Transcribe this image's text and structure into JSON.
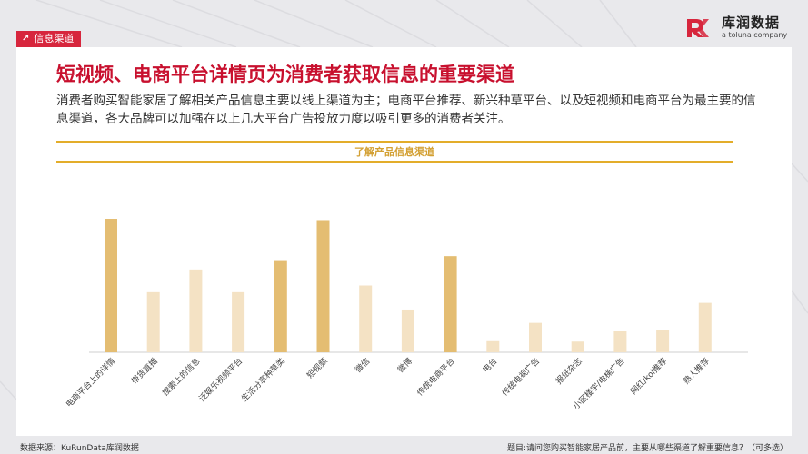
{
  "header": {
    "tag_label": "信息渠道",
    "tag_icon": "arrow-up-right-icon",
    "logo_main": "库润数据",
    "logo_sub": "a toluna company",
    "accent": "#d7263d"
  },
  "main": {
    "title": "短视频、电商平台详情页为消费者获取信息的重要渠道",
    "description": "消费者购买智能家居了解相关产品信息主要以线上渠道为主；电商平台推荐、新兴种草平台、以及短视频和电商平台为最主要的信息渠道，各大品牌可以加强在以上几大平台广告投放力度以吸引更多的消费者关注。"
  },
  "chart_data": {
    "type": "bar",
    "title": "了解产品信息渠道",
    "categories": [
      "电商平台上的详情",
      "带货直播",
      "搜索上的信息",
      "泛娱乐视频平台",
      "生活分享种草类",
      "短视频",
      "微信",
      "微博",
      "传统电商平台",
      "电台",
      "传统电视广告",
      "报纸杂志",
      "小区楼宇/电梯广告",
      "网红/kol推荐",
      "熟人推荐"
    ],
    "values": [
      100,
      45,
      62,
      45,
      69,
      99,
      50,
      32,
      72,
      9,
      22,
      8,
      16,
      17,
      37
    ],
    "highlight": [
      true,
      false,
      false,
      false,
      true,
      true,
      false,
      false,
      true,
      false,
      false,
      false,
      false,
      false,
      false
    ],
    "ylim": [
      0,
      100
    ],
    "grid": false,
    "colors": {
      "highlight": "#e4bd72",
      "normal": "#f4e2c4"
    }
  },
  "footer": {
    "source": "数据来源：KuRunData库润数据",
    "question": "题目:请问您购买智能家居产品前，主要从哪些渠道了解重要信息？（可多选）"
  }
}
